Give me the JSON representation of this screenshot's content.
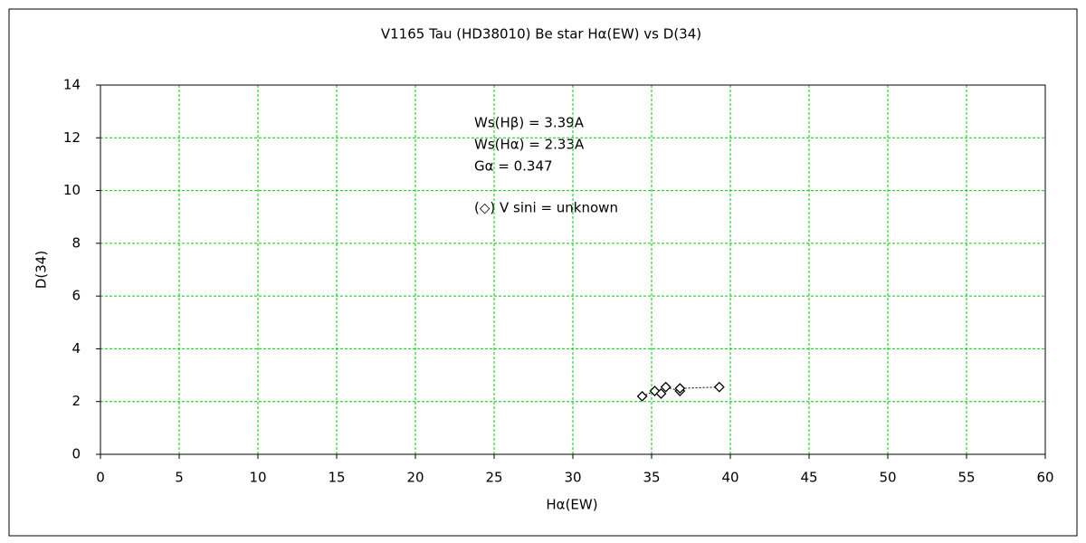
{
  "chart_data": {
    "type": "scatter",
    "title": "V1165 Tau (HD38010)    Be star    Hα(EW) vs D(34)",
    "x_label": "Hα(EW)",
    "y_label": "D(34)",
    "annotations": [
      "Ws(Hβ) = 3.39A",
      "Ws(Hα) = 2.33A",
      "Gα = 0.347",
      "(◇) V sini = unknown"
    ],
    "series": [
      {
        "name": "V sini = unknown",
        "color": "#000000",
        "x": [
          34.4,
          35.2,
          35.6,
          35.9,
          36.8,
          36.8,
          39.3
        ],
        "values": [
          2.2,
          2.4,
          2.3,
          2.55,
          2.4,
          2.5,
          2.55
        ]
      }
    ],
    "xlim": [
      0,
      60
    ],
    "xticks": [
      0,
      5,
      10,
      15,
      20,
      25,
      30,
      35,
      40,
      45,
      50,
      55,
      60
    ],
    "ylim": [
      0,
      14
    ],
    "yticks": [
      0,
      2,
      4,
      6,
      8,
      10,
      12,
      14
    ],
    "grid": true,
    "grid_color": "#00cc00"
  }
}
